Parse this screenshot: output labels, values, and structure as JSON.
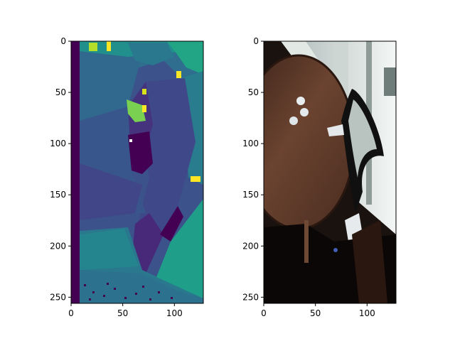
{
  "figure": {
    "background": "#ffffff",
    "panels": [
      {
        "kind": "depth-map",
        "colormap": "viridis",
        "x_ticks": [
          "0",
          "50",
          "100"
        ],
        "y_ticks": [
          "0",
          "50",
          "100",
          "150",
          "200",
          "250"
        ],
        "x_tick_values": [
          0,
          50,
          100
        ],
        "y_tick_values": [
          0,
          50,
          100,
          150,
          200,
          250
        ],
        "xlim": [
          0,
          128
        ],
        "ylim": [
          256,
          0
        ]
      },
      {
        "kind": "rgb-photo",
        "x_ticks": [
          "0",
          "50",
          "100"
        ],
        "y_ticks": [
          "0",
          "50",
          "100",
          "150",
          "200",
          "250"
        ],
        "x_tick_values": [
          0,
          50,
          100
        ],
        "y_tick_values": [
          0,
          50,
          100,
          150,
          200,
          250
        ],
        "xlim": [
          0,
          128
        ],
        "ylim": [
          256,
          0
        ]
      }
    ]
  }
}
